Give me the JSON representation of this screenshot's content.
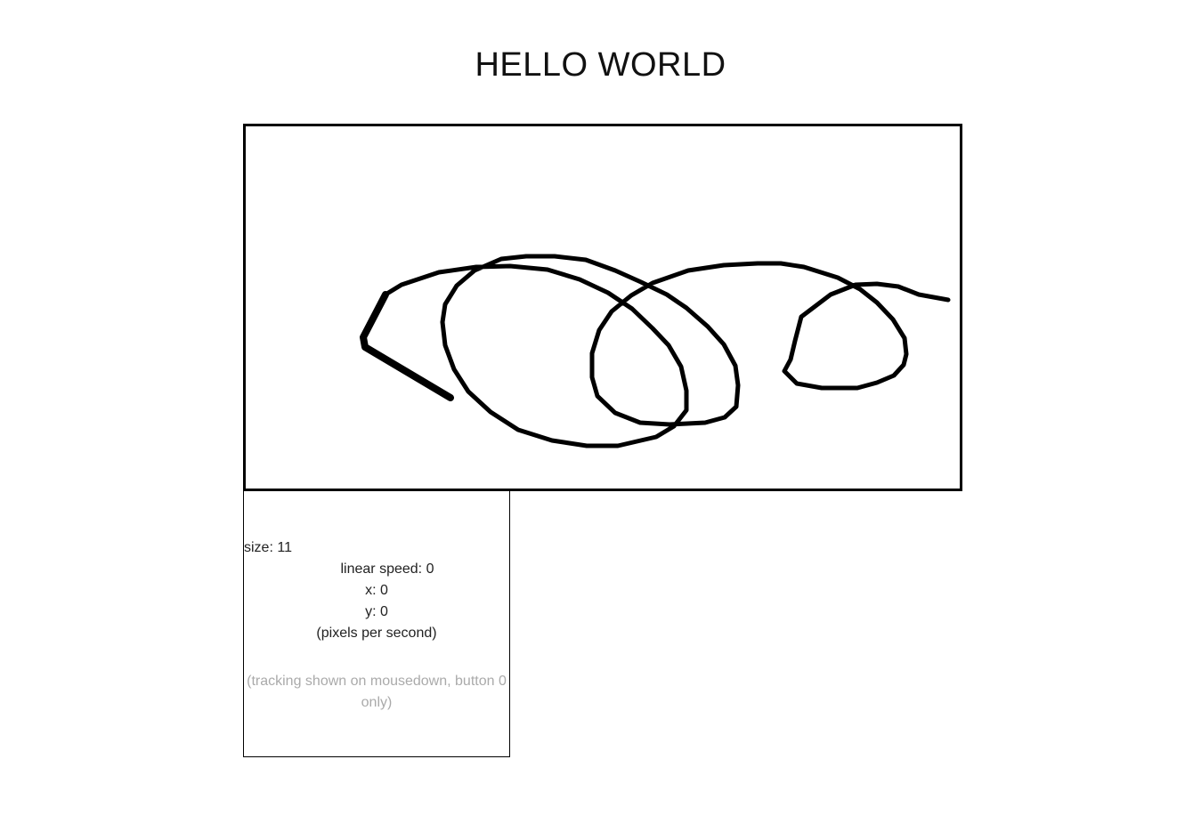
{
  "header": {
    "title": "HELLO WORLD"
  },
  "drawing_canvas": {
    "stroke_color": "#000000",
    "background": "#ffffff"
  },
  "stats": {
    "size_label": "size:",
    "size_value": "11",
    "linear_speed_label": "linear speed:",
    "linear_speed_value": "0",
    "x_label": "x:",
    "x_value": "0",
    "y_label": "y:",
    "y_value": "0",
    "units": "(pixels per second)",
    "hint": "(tracking shown on mousedown, button 0 only)"
  }
}
